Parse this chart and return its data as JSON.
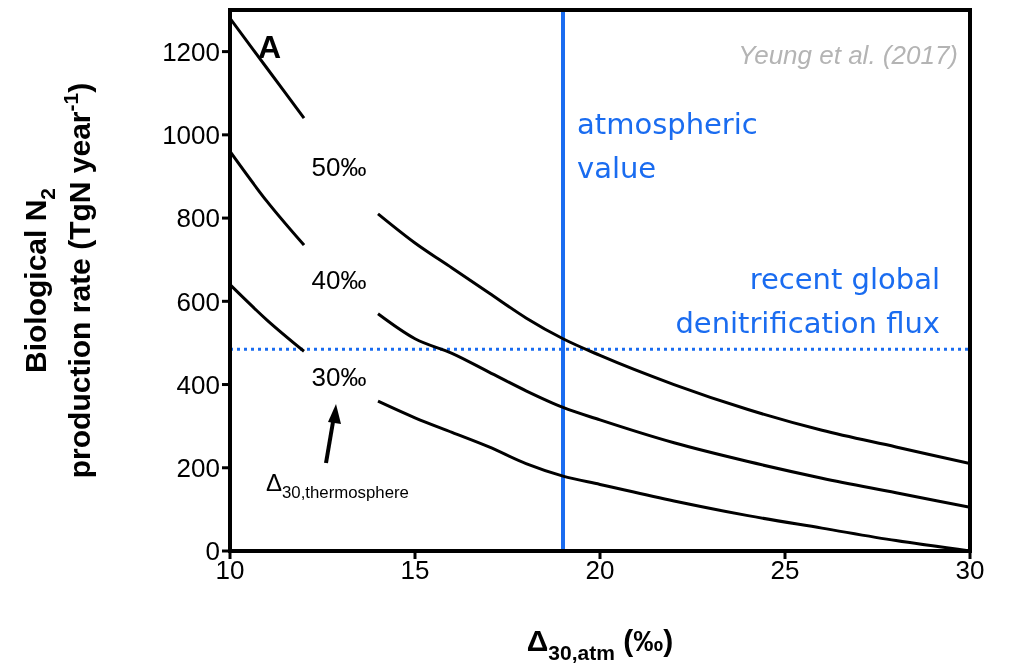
{
  "chart_data": {
    "type": "line",
    "xlabel": "Δ$_{30,atm}$ (‰)",
    "ylabel": "Biological N$_{2}$ production rate (TgN year$^{-1}$)",
    "x": [
      10,
      11,
      12,
      13,
      14,
      15,
      16,
      17,
      18,
      19,
      20,
      22,
      24,
      26,
      28,
      30
    ],
    "series": [
      {
        "name": "50‰",
        "color": "#000000",
        "values": [
          1280,
          1160,
          1040,
          null,
          810,
          740,
          680,
          620,
          560,
          510,
          470,
          400,
          340,
          290,
          250,
          210
        ]
      },
      {
        "name": "40‰",
        "color": "#000000",
        "values": [
          960,
          840,
          735,
          null,
          570,
          510,
          475,
          430,
          385,
          345,
          315,
          260,
          215,
          175,
          140,
          105
        ]
      },
      {
        "name": "30‰",
        "color": "#000000",
        "values": [
          640,
          555,
          480,
          null,
          360,
          320,
          285,
          250,
          210,
          180,
          160,
          120,
          85,
          55,
          25,
          0
        ]
      }
    ],
    "xlim": [
      10,
      30
    ],
    "xticks": [
      10,
      15,
      20,
      25,
      30
    ],
    "ylim": [
      0,
      1300
    ],
    "yticks": [
      0,
      200,
      400,
      600,
      800,
      1000,
      1200
    ],
    "ref_lines": [
      {
        "axis": "x",
        "value": 19,
        "label": "atmospheric value",
        "color": "#1a6cf0",
        "line_style": "solid"
      },
      {
        "axis": "y",
        "value": 485,
        "label": "recent global denitrification flux",
        "color": "#1a6cf0",
        "line_style": "dotted"
      }
    ],
    "annotations": [
      "A",
      "Yeung et al. (2017)",
      "Δ$_{30,thermosphere}$"
    ],
    "marker": "none",
    "line_style": "solid"
  }
}
